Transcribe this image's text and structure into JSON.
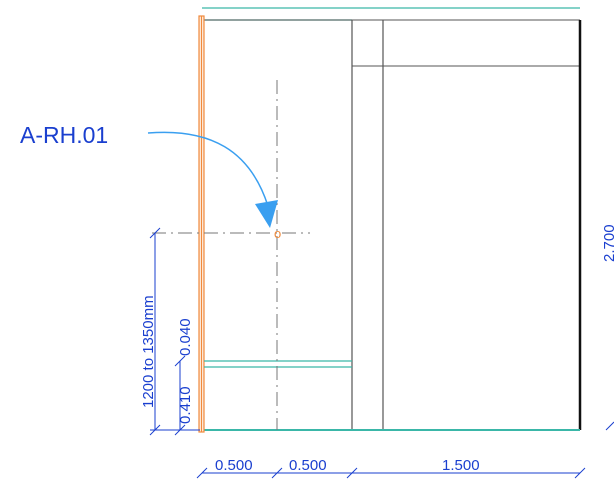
{
  "callout": {
    "tag": "A-RH.01"
  },
  "point_marker": {
    "glyph": "o"
  },
  "dimensions": {
    "horizontal": [
      "0.500",
      "0.500",
      "1.500"
    ],
    "height_right": "2.700",
    "vertical_range": "1200 to 1350mm",
    "vertical_upper": "0.040",
    "vertical_lower": "0.410"
  },
  "colors": {
    "dimension_text": "#1a3fcf",
    "callout_arrow": "#3a9ff0",
    "wall_orange": "#f08a3c",
    "teal_line": "#3ab7a8",
    "frame_line": "#555555",
    "center_line": "#777777"
  }
}
